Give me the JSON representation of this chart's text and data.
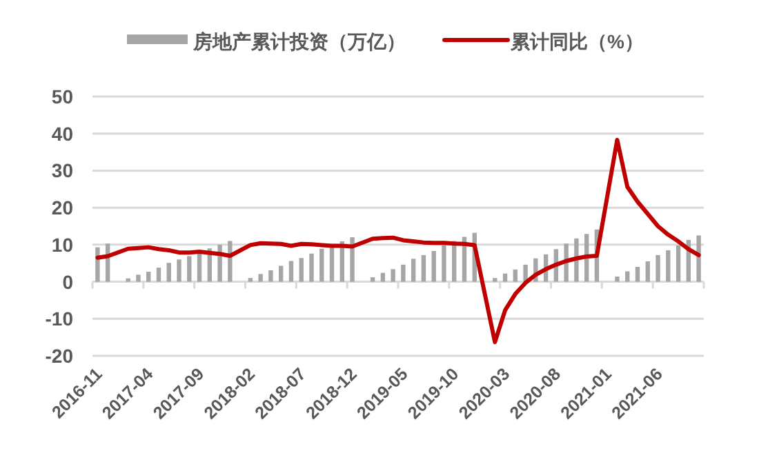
{
  "chart_data": {
    "type": "bar",
    "categories": [
      "2016-11",
      null,
      null,
      null,
      null,
      "2017-04",
      null,
      null,
      null,
      null,
      "2017-09",
      null,
      null,
      null,
      null,
      "2018-02",
      null,
      null,
      null,
      null,
      "2018-07",
      null,
      null,
      null,
      null,
      "2018-12",
      null,
      null,
      null,
      null,
      "2019-05",
      null,
      null,
      null,
      null,
      "2019-10",
      null,
      null,
      null,
      null,
      "2020-03",
      null,
      null,
      null,
      null,
      "2020-08",
      null,
      null,
      null,
      null,
      "2021-01",
      null,
      null,
      null,
      null,
      "2021-06",
      null,
      null,
      null,
      null
    ],
    "series": [
      {
        "name": "房地产累计投资（万亿）",
        "color": "#a6a6a6",
        "values": [
          9.3,
          10.3,
          null,
          0.9,
          1.9,
          2.7,
          3.8,
          5.1,
          6.0,
          6.9,
          8.1,
          9.0,
          10.0,
          11.0,
          null,
          1.0,
          2.1,
          3.1,
          4.3,
          5.6,
          6.4,
          7.6,
          8.9,
          9.9,
          10.9,
          12.0,
          null,
          1.2,
          2.4,
          3.4,
          4.6,
          6.2,
          7.2,
          8.3,
          9.9,
          11.0,
          12.1,
          13.2,
          null,
          1.0,
          2.2,
          3.3,
          4.6,
          6.3,
          7.4,
          8.8,
          10.3,
          11.7,
          12.9,
          14.1,
          null,
          1.4,
          2.8,
          4.0,
          5.5,
          7.2,
          8.5,
          9.8,
          11.3,
          12.5
        ]
      },
      {
        "name": "累计同比（%）",
        "type": "line",
        "color": "#c00000",
        "values": [
          6.5,
          6.9,
          null,
          8.9,
          9.1,
          9.3,
          8.8,
          8.5,
          7.9,
          7.9,
          8.1,
          7.8,
          7.5,
          7.0,
          null,
          9.9,
          10.4,
          10.3,
          10.2,
          9.7,
          10.2,
          10.1,
          9.9,
          9.7,
          9.7,
          9.5,
          null,
          11.6,
          11.8,
          11.9,
          11.2,
          10.9,
          10.6,
          10.5,
          10.5,
          10.3,
          10.2,
          9.9,
          null,
          -16.3,
          -7.7,
          -3.3,
          -0.3,
          1.9,
          3.4,
          4.6,
          5.6,
          6.3,
          6.8,
          7.0,
          null,
          38.3,
          25.6,
          21.6,
          18.3,
          15.0,
          12.7,
          10.9,
          8.8,
          7.2
        ]
      }
    ],
    "ylim": [
      -20,
      50
    ],
    "yticks": [
      -20,
      -10,
      0,
      10,
      20,
      30,
      40,
      50
    ],
    "grid": "y",
    "legend": "top"
  }
}
